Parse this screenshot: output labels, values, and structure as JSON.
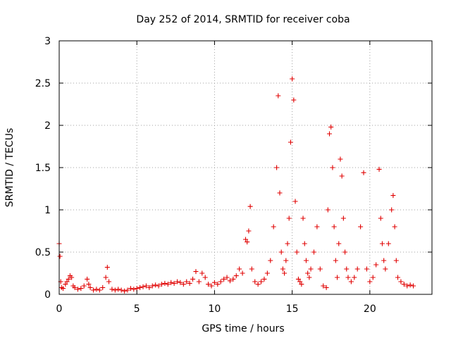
{
  "chart_data": {
    "type": "scatter",
    "title": "Day 252 of 2014, SRMTID for receiver coba",
    "xlabel": "GPS time / hours",
    "ylabel": "SRMTID / TECUs",
    "xlim": [
      0,
      24
    ],
    "ylim": [
      0,
      3
    ],
    "xticks": [
      0,
      5,
      10,
      15,
      20
    ],
    "yticks": [
      0,
      0.5,
      1,
      1.5,
      2,
      2.5,
      3
    ],
    "xtick_labels": [
      "0",
      "5",
      "10",
      "15",
      "20"
    ],
    "ytick_labels": [
      "0",
      "0.5",
      "1",
      "1.5",
      "2",
      "2.5",
      "3"
    ],
    "grid": true,
    "marker": "+",
    "marker_color": "#e00000",
    "series": [
      {
        "name": "coba",
        "x": [
          0.0,
          0.05,
          0.1,
          0.15,
          0.25,
          0.4,
          0.5,
          0.6,
          0.7,
          0.8,
          0.9,
          1.0,
          1.2,
          1.4,
          1.6,
          1.8,
          1.9,
          2.0,
          2.2,
          2.4,
          2.6,
          2.8,
          3.0,
          3.1,
          3.2,
          3.4,
          3.6,
          3.8,
          4.0,
          4.2,
          4.4,
          4.6,
          4.8,
          5.0,
          5.2,
          5.4,
          5.6,
          5.8,
          6.0,
          6.2,
          6.4,
          6.6,
          6.8,
          7.0,
          7.2,
          7.4,
          7.6,
          7.8,
          8.0,
          8.2,
          8.4,
          8.6,
          8.8,
          9.0,
          9.2,
          9.4,
          9.6,
          9.8,
          10.0,
          10.2,
          10.4,
          10.6,
          10.8,
          11.0,
          11.2,
          11.4,
          11.6,
          11.8,
          12.0,
          12.1,
          12.2,
          12.3,
          12.4,
          12.6,
          12.8,
          13.0,
          13.2,
          13.4,
          13.6,
          13.8,
          14.0,
          14.1,
          14.2,
          14.3,
          14.4,
          14.5,
          14.6,
          14.7,
          14.8,
          14.9,
          15.0,
          15.1,
          15.2,
          15.3,
          15.4,
          15.5,
          15.6,
          15.7,
          15.8,
          15.9,
          16.0,
          16.1,
          16.2,
          16.4,
          16.6,
          16.8,
          17.0,
          17.2,
          17.3,
          17.4,
          17.5,
          17.6,
          17.7,
          17.8,
          17.9,
          18.0,
          18.1,
          18.2,
          18.3,
          18.4,
          18.5,
          18.6,
          18.8,
          19.0,
          19.2,
          19.4,
          19.6,
          19.8,
          20.0,
          20.2,
          20.4,
          20.6,
          20.7,
          20.8,
          20.9,
          21.0,
          21.2,
          21.4,
          21.5,
          21.6,
          21.7,
          21.8,
          22.0,
          22.2,
          22.4,
          22.6,
          22.8
        ],
        "y": [
          0.6,
          0.45,
          0.15,
          0.08,
          0.07,
          0.12,
          0.15,
          0.18,
          0.22,
          0.2,
          0.1,
          0.08,
          0.06,
          0.07,
          0.1,
          0.18,
          0.12,
          0.08,
          0.05,
          0.06,
          0.05,
          0.08,
          0.2,
          0.32,
          0.15,
          0.06,
          0.05,
          0.06,
          0.05,
          0.04,
          0.05,
          0.07,
          0.06,
          0.07,
          0.08,
          0.09,
          0.1,
          0.08,
          0.1,
          0.11,
          0.1,
          0.12,
          0.13,
          0.12,
          0.14,
          0.13,
          0.15,
          0.14,
          0.12,
          0.15,
          0.13,
          0.18,
          0.27,
          0.15,
          0.25,
          0.2,
          0.12,
          0.1,
          0.14,
          0.12,
          0.15,
          0.18,
          0.2,
          0.16,
          0.18,
          0.22,
          0.3,
          0.25,
          0.65,
          0.62,
          0.75,
          1.04,
          0.3,
          0.15,
          0.12,
          0.15,
          0.18,
          0.25,
          0.4,
          0.8,
          1.5,
          2.35,
          1.2,
          0.5,
          0.3,
          0.25,
          0.4,
          0.6,
          0.9,
          1.8,
          2.55,
          2.3,
          1.1,
          0.5,
          0.18,
          0.15,
          0.12,
          0.9,
          0.6,
          0.4,
          0.25,
          0.2,
          0.3,
          0.5,
          0.8,
          0.3,
          0.1,
          0.08,
          1.0,
          1.9,
          1.98,
          1.5,
          0.8,
          0.4,
          0.2,
          0.6,
          1.6,
          1.4,
          0.9,
          0.5,
          0.3,
          0.2,
          0.15,
          0.2,
          0.3,
          0.8,
          1.44,
          0.3,
          0.15,
          0.2,
          0.35,
          1.48,
          0.9,
          0.6,
          0.4,
          0.3,
          0.6,
          1.0,
          1.17,
          0.8,
          0.4,
          0.2,
          0.15,
          0.12,
          0.1,
          0.11,
          0.1
        ]
      }
    ]
  }
}
